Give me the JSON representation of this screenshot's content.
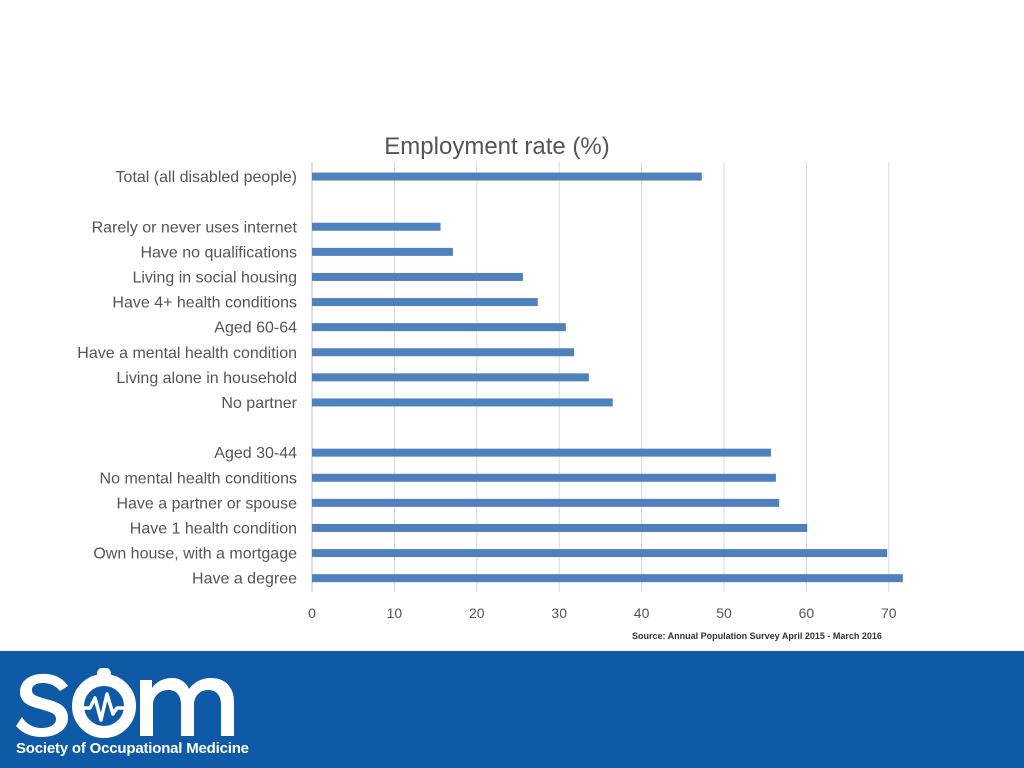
{
  "chart_data": {
    "type": "bar",
    "orientation": "horizontal",
    "title": "Employment rate (%)",
    "xlabel": "",
    "ylabel": "",
    "xlim": [
      0,
      70
    ],
    "xticks": [
      0,
      10,
      20,
      30,
      40,
      50,
      60,
      70
    ],
    "grid": true,
    "legend": "none",
    "bar_color": "#4f81bd",
    "categories": [
      "Total (all disabled people)",
      "",
      "Rarely or never uses internet",
      "Have no qualifications",
      "Living in social housing",
      "Have 4+ health conditions",
      "Aged 60-64",
      "Have a mental health condition",
      "Living alone in household",
      "No partner",
      "",
      "Aged 30-44",
      "No mental health conditions",
      "Have a partner or spouse",
      "Have 1 health condition",
      "Own house, with a mortgage",
      "Have a degree"
    ],
    "values": [
      47.3,
      null,
      15.6,
      17.1,
      25.6,
      27.4,
      30.8,
      31.8,
      33.6,
      36.5,
      null,
      55.7,
      56.3,
      56.7,
      60.1,
      69.8,
      71.7
    ]
  },
  "source": "Source:  Annual Population Survey April 2015 - March 2016",
  "footer": {
    "org_name": "Society of Occupational Medicine",
    "background": "#0f5aa6"
  }
}
